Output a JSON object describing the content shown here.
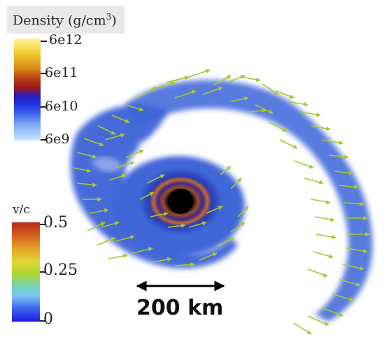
{
  "density_colorbar": {
    "title": "Density (g/cm",
    "title_exponent": "3",
    "title_close": ")",
    "ticks": [
      "6e12",
      "6e11",
      "6e10",
      "6e9"
    ]
  },
  "velocity_colorbar": {
    "title": "v/c",
    "ticks": [
      "0.5",
      "0.25",
      "0"
    ]
  },
  "scale_bar": {
    "label": "200 km"
  },
  "colors": {
    "disk_blue": "#3b63d8",
    "arrow_green": "#a8c92e",
    "black_hole": "#000000",
    "ring_orange": "#c8602a"
  }
}
